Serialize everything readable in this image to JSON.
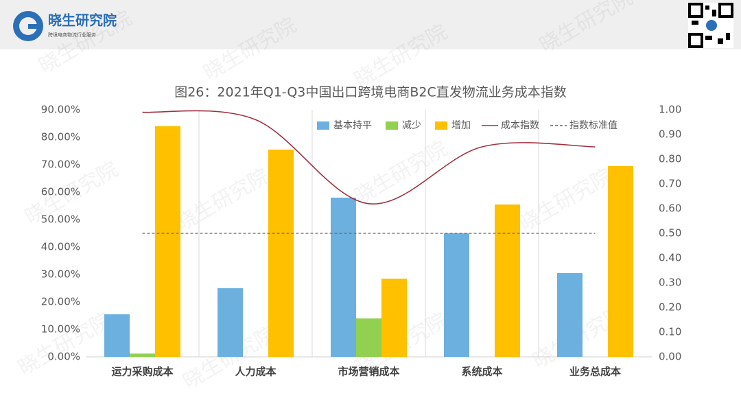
{
  "header": {
    "brand": "晓生研究院",
    "tagline": "跨境电商物流行业服务"
  },
  "watermark": "晓生研究院",
  "chart_data": {
    "type": "bar_line",
    "title": "图26：2021年Q1-Q3中国出口跨境电商B2C直发物流业务成本指数",
    "categories": [
      "运力采购成本",
      "人力成本",
      "市场营销成本",
      "系统成本",
      "业务总成本"
    ],
    "series": [
      {
        "name": "基本持平",
        "type": "bar",
        "color": "#6cb0df",
        "values": [
          15.5,
          25,
          58,
          45,
          30.5
        ]
      },
      {
        "name": "减少",
        "type": "bar",
        "color": "#92d050",
        "values": [
          1.2,
          0,
          14,
          0,
          0
        ]
      },
      {
        "name": "增加",
        "type": "bar",
        "color": "#ffc000",
        "values": [
          84,
          75.5,
          28.5,
          55.5,
          69.5
        ]
      },
      {
        "name": "成本指数",
        "type": "line",
        "smooth": true,
        "axis": "y2",
        "color": "#a0303f",
        "values": [
          0.99,
          0.96,
          0.62,
          0.85,
          0.85
        ]
      },
      {
        "name": "指数标准值",
        "type": "line",
        "dashed": true,
        "axis": "y2",
        "color": "#7a5c5c",
        "values": [
          0.5,
          0.5,
          0.5,
          0.5,
          0.5
        ]
      }
    ],
    "ylim": [
      0,
      90
    ],
    "yticks": [
      {
        "value": 0,
        "label": "0.00%"
      },
      {
        "value": 10,
        "label": "10.00%"
      },
      {
        "value": 20,
        "label": "20.00%"
      },
      {
        "value": 30,
        "label": "30.00%"
      },
      {
        "value": 40,
        "label": "40.00%"
      },
      {
        "value": 50,
        "label": "50.00%"
      },
      {
        "value": 60,
        "label": "60.00%"
      },
      {
        "value": 70,
        "label": "70.00%"
      },
      {
        "value": 80,
        "label": "80.00%"
      },
      {
        "value": 90,
        "label": "90.00%"
      }
    ],
    "y2lim": [
      0,
      1
    ],
    "y2ticks": [
      {
        "value": 0,
        "label": "0.00"
      },
      {
        "value": 0.1,
        "label": "0.10"
      },
      {
        "value": 0.2,
        "label": "0.20"
      },
      {
        "value": 0.3,
        "label": "0.30"
      },
      {
        "value": 0.4,
        "label": "0.40"
      },
      {
        "value": 0.5,
        "label": "0.50"
      },
      {
        "value": 0.6,
        "label": "0.60"
      },
      {
        "value": 0.7,
        "label": "0.70"
      },
      {
        "value": 0.8,
        "label": "0.80"
      },
      {
        "value": 0.9,
        "label": "0.90"
      },
      {
        "value": 1,
        "label": "1.00"
      }
    ],
    "grid": false,
    "legend": "top-right"
  }
}
